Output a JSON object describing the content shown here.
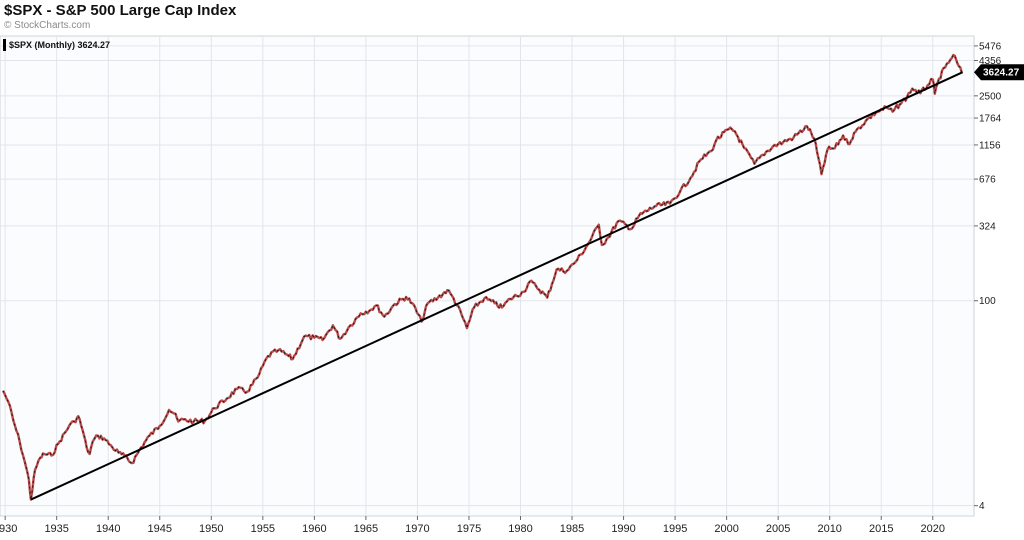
{
  "header": {
    "title": "$SPX - S&P 500 Large Cap Index",
    "credit": "© StockCharts.com"
  },
  "chart_data": {
    "type": "line",
    "title": "$SPX - S&P 500 Large Cap Index",
    "xlabel": "",
    "ylabel": "",
    "y_scale": "log",
    "grid": true,
    "legend": {
      "placement": "top-left",
      "symbol": "$SPX (Monthly)",
      "last": "3624.27"
    },
    "last_value": 3624.27,
    "x_ticks": [
      1930,
      1935,
      1940,
      1945,
      1950,
      1955,
      1960,
      1965,
      1970,
      1975,
      1980,
      1985,
      1990,
      1995,
      2000,
      2005,
      2010,
      2015,
      2020
    ],
    "y_ticks": [
      4,
      100,
      324,
      676,
      1156,
      1764,
      2500,
      4356,
      5476
    ],
    "xlim": [
      1929.5,
      2024
    ],
    "ylim": [
      3.4,
      6400
    ],
    "series": [
      {
        "name": "$SPX (Monthly)",
        "x": [
          1929.8,
          1930.3,
          1930.8,
          1931.4,
          1931.9,
          1932.3,
          1932.5,
          1932.9,
          1933.4,
          1933.8,
          1934.5,
          1935.3,
          1936.2,
          1936.7,
          1937.1,
          1937.5,
          1937.9,
          1938.2,
          1938.5,
          1939.0,
          1939.6,
          1940.4,
          1941.0,
          1941.6,
          1942.3,
          1943.2,
          1944.0,
          1945.0,
          1945.9,
          1946.4,
          1946.8,
          1947.3,
          1948.3,
          1949.4,
          1950.3,
          1951.5,
          1952.5,
          1953.5,
          1954.5,
          1955.5,
          1956.5,
          1957.5,
          1957.9,
          1959.0,
          1960.0,
          1960.8,
          1961.8,
          1962.5,
          1963.5,
          1964.5,
          1965.5,
          1966.0,
          1966.8,
          1967.8,
          1968.9,
          1969.5,
          1970.4,
          1971.0,
          1972.0,
          1972.9,
          1973.5,
          1974.3,
          1974.8,
          1975.5,
          1976.5,
          1977.5,
          1978.2,
          1979.0,
          1980.3,
          1980.9,
          1981.5,
          1982.6,
          1983.5,
          1984.5,
          1985.5,
          1986.5,
          1987.6,
          1987.9,
          1988.5,
          1989.5,
          1990.8,
          1991.5,
          1993.0,
          1994.5,
          1995.5,
          1996.5,
          1997.5,
          1998.5,
          1999.0,
          2000.2,
          2000.8,
          2001.7,
          2002.7,
          2003.5,
          2004.5,
          2005.5,
          2006.5,
          2007.8,
          2008.5,
          2009.2,
          2009.8,
          2010.5,
          2011.3,
          2011.8,
          2012.5,
          2013.5,
          2014.5,
          2015.5,
          2016.1,
          2016.8,
          2017.5,
          2018.0,
          2018.8,
          2019.5,
          2020.0,
          2020.2,
          2020.6,
          2021.2,
          2021.7,
          2022.0,
          2022.4,
          2022.8
        ],
        "values": [
          24.35,
          20.5,
          15.2,
          11.0,
          8.0,
          6.0,
          4.4,
          7.0,
          8.5,
          9.0,
          8.8,
          11.0,
          14.0,
          15.0,
          16.3,
          13.2,
          10.0,
          9.0,
          11.0,
          12.0,
          11.5,
          10.0,
          9.2,
          8.7,
          7.8,
          10.0,
          12.0,
          14.0,
          18.0,
          17.0,
          15.0,
          15.5,
          15.0,
          15.2,
          18.5,
          21.5,
          25.0,
          24.0,
          30.0,
          42.0,
          46.0,
          42.0,
          40.0,
          57.0,
          56.0,
          54.0,
          68.0,
          55.0,
          68.0,
          82.0,
          87.0,
          93.0,
          78.0,
          95.0,
          106.0,
          96.0,
          72.0,
          96.0,
          105.0,
          118.0,
          104.0,
          80.0,
          65.0,
          90.0,
          104.0,
          96.0,
          90.0,
          103.0,
          115.0,
          135.0,
          126.0,
          105.0,
          163.0,
          160.0,
          190.0,
          240.0,
          330.0,
          240.0,
          270.0,
          350.0,
          310.0,
          380.0,
          440.0,
          460.0,
          560.0,
          690.0,
          920.0,
          1050.0,
          1250.0,
          1480.0,
          1430.0,
          1100.0,
          860.0,
          990.0,
          1130.0,
          1210.0,
          1300.0,
          1550.0,
          1280.0,
          730.0,
          1080.0,
          1100.0,
          1340.0,
          1170.0,
          1420.0,
          1690.0,
          1930.0,
          2080.0,
          1950.0,
          2190.0,
          2450.0,
          2800.0,
          2600.0,
          2950.0,
          3230.0,
          2580.0,
          3270.0,
          3900.0,
          4400.0,
          4750.0,
          4150.0,
          3624.27
        ]
      }
    ],
    "trendline": {
      "x": [
        1932.5,
        2022.9
      ],
      "values": [
        4.4,
        3624.27
      ]
    }
  }
}
